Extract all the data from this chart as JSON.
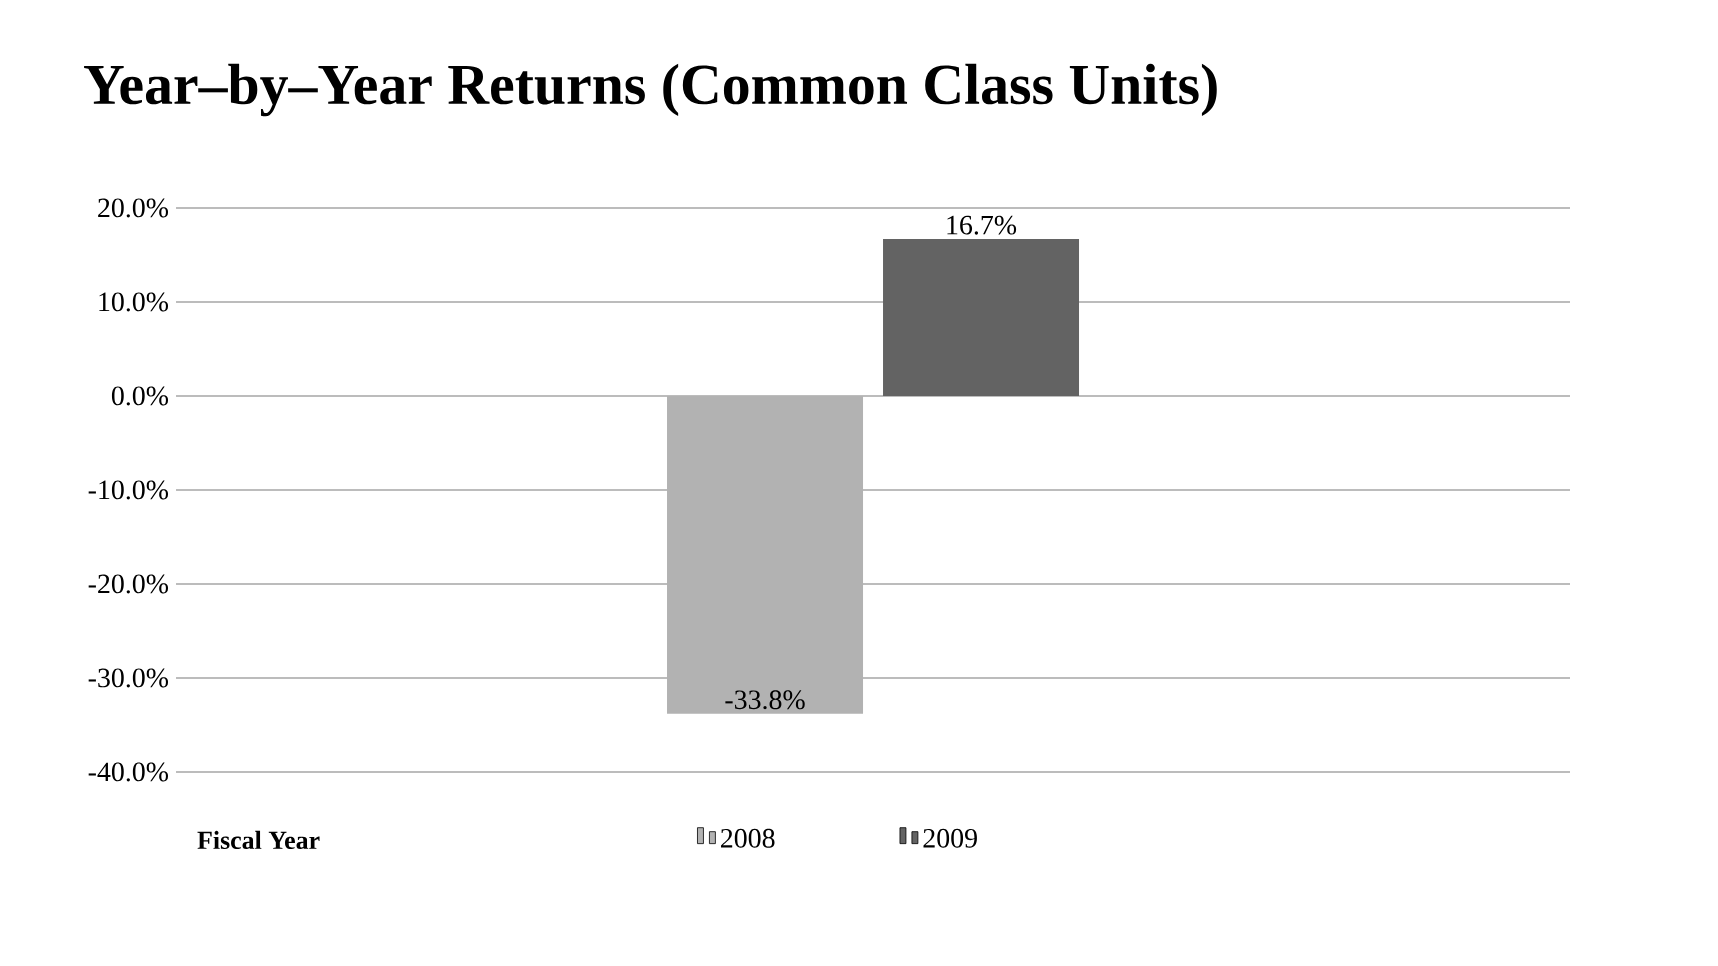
{
  "chart_data": {
    "type": "bar",
    "title": "Year–by–Year Returns (Common Class Units)",
    "legend_title": "Fiscal Year",
    "categories": [
      null
    ],
    "series": [
      {
        "name": "2008",
        "color": "#b2b2b2",
        "values": [
          -33.8
        ],
        "value_labels": [
          "-33.8%"
        ]
      },
      {
        "name": "2009",
        "color": "#636363",
        "values": [
          16.7
        ],
        "value_labels": [
          "16.7%"
        ]
      }
    ],
    "ylim": [
      -40,
      20
    ],
    "yticks": [
      {
        "value": -40,
        "label": "-40.0%"
      },
      {
        "value": -30,
        "label": "-30.0%"
      },
      {
        "value": -20,
        "label": "-20.0%"
      },
      {
        "value": -10,
        "label": "-10.0%"
      },
      {
        "value": 0,
        "label": "0.0%"
      },
      {
        "value": 10,
        "label": "10.0%"
      },
      {
        "value": 20,
        "label": "20.0%"
      }
    ],
    "grid": "y",
    "legend": "bottom"
  }
}
